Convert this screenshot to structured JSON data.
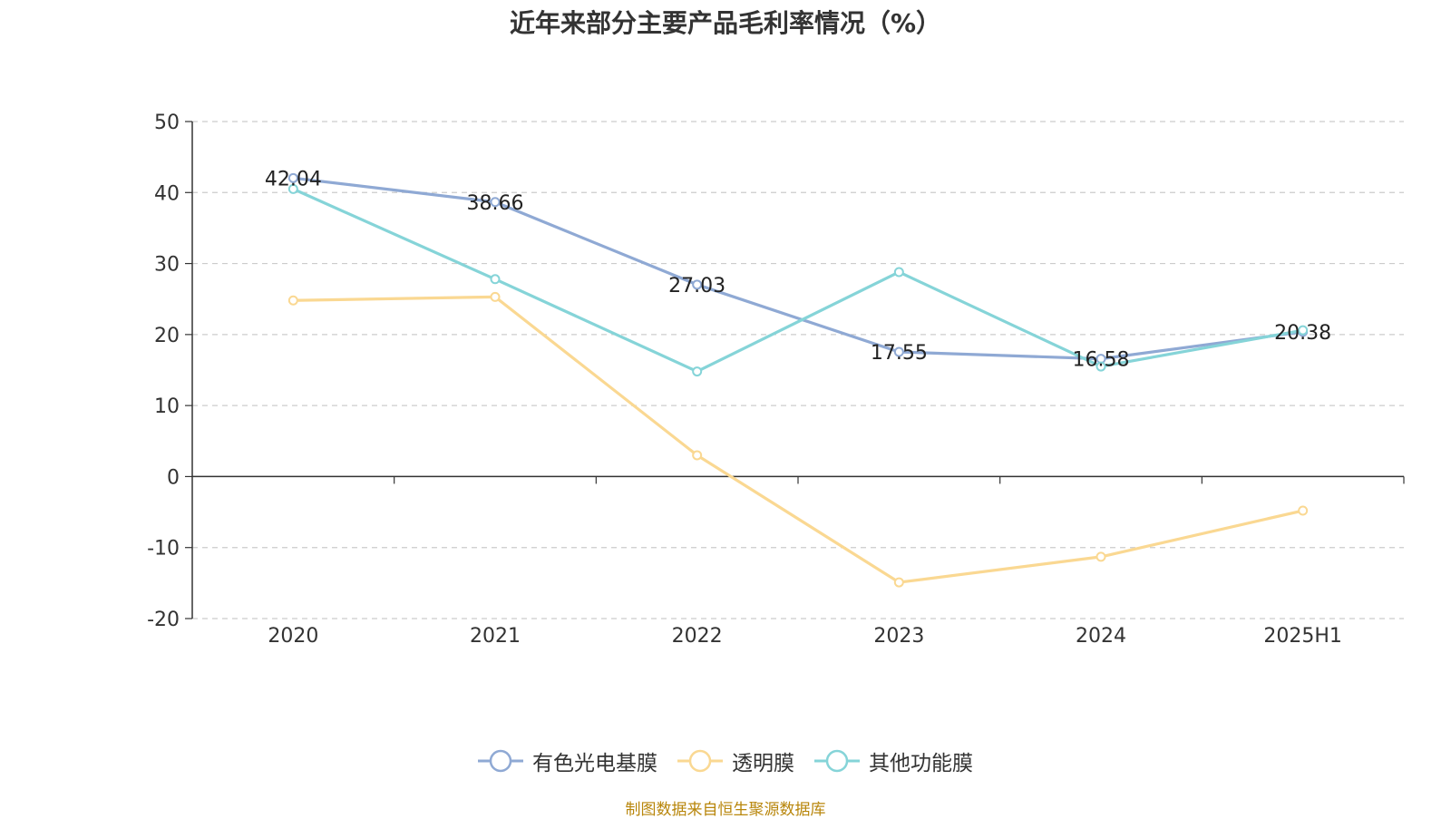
{
  "chart_data": {
    "type": "line",
    "title": "近年来部分主要产品毛利率情况（%）",
    "categories": [
      "2020",
      "2021",
      "2022",
      "2023",
      "2024",
      "2025H1"
    ],
    "ylim": [
      -20,
      50
    ],
    "yticks": [
      "50",
      "40",
      "30",
      "20",
      "10",
      "0",
      "-10",
      "-20"
    ],
    "grid": true,
    "legend_position": "bottom",
    "series": [
      {
        "name": "有色光电基膜",
        "color": "#8fa9d4",
        "values": [
          42.04,
          38.66,
          27.03,
          17.55,
          16.58,
          20.38
        ],
        "labels": [
          "42.04",
          "38.66",
          "27.03",
          "17.55",
          "16.58",
          "20.38"
        ]
      },
      {
        "name": "透明膜",
        "color": "#fad892",
        "values": [
          24.8,
          25.3,
          3.0,
          -14.9,
          -11.3,
          -4.8
        ]
      },
      {
        "name": "其他功能膜",
        "color": "#85d4d8",
        "values": [
          40.5,
          27.8,
          14.8,
          28.8,
          15.5,
          20.6
        ]
      }
    ],
    "source": "制图数据来自恒生聚源数据库"
  }
}
